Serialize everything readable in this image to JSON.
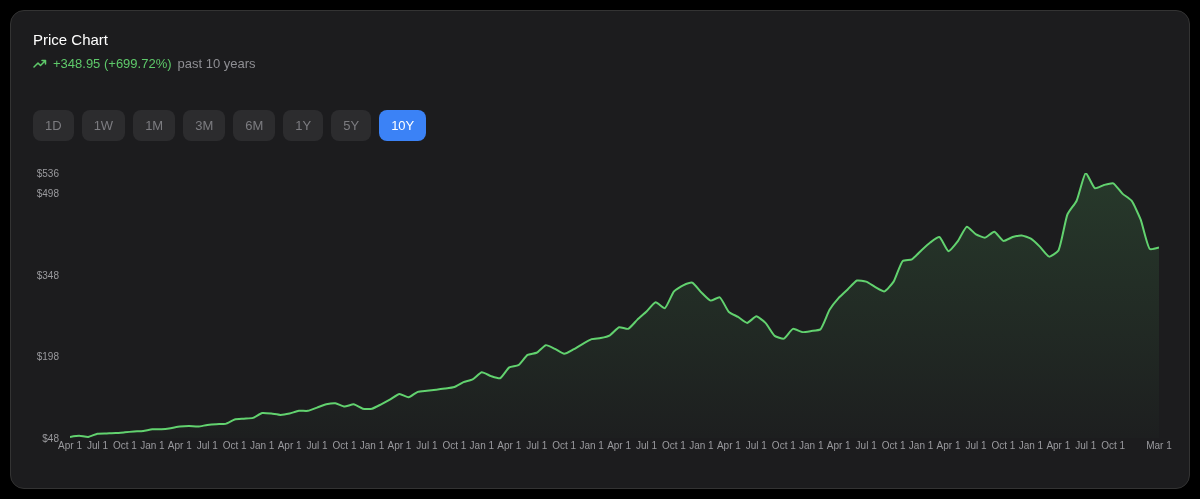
{
  "chart_data": {
    "type": "area",
    "title": "Price Chart",
    "subtitle": "+348.95 (+699.72%)",
    "annotations": [
      "past 10 years",
      "1D",
      "1W",
      "1M",
      "3M",
      "6M",
      "1Y",
      "5Y",
      "10Y"
    ],
    "categories": [
      "Apr 1",
      null,
      null,
      "Jul 1",
      null,
      null,
      "Oct 1",
      null,
      null,
      "Jan 1",
      null,
      null,
      "Apr 1",
      null,
      null,
      "Jul 1",
      null,
      null,
      "Oct 1",
      null,
      null,
      "Jan 1",
      null,
      null,
      "Apr 1",
      null,
      null,
      "Jul 1",
      null,
      null,
      "Oct 1",
      null,
      null,
      "Jan 1",
      null,
      null,
      "Apr 1",
      null,
      null,
      "Jul 1",
      null,
      null,
      "Oct 1",
      null,
      null,
      "Jan 1",
      null,
      null,
      "Apr 1",
      null,
      null,
      "Jul 1",
      null,
      null,
      "Oct 1",
      null,
      null,
      "Jan 1",
      null,
      null,
      "Apr 1",
      null,
      null,
      "Jul 1",
      null,
      null,
      "Oct 1",
      null,
      null,
      "Jan 1",
      null,
      null,
      "Apr 1",
      null,
      null,
      "Jul 1",
      null,
      null,
      "Oct 1",
      null,
      null,
      "Jan 1",
      null,
      null,
      "Apr 1",
      null,
      null,
      "Jul 1",
      null,
      null,
      "Oct 1",
      null,
      null,
      "Jan 1",
      null,
      null,
      "Apr 1",
      null,
      null,
      "Jul 1",
      null,
      null,
      "Oct 1",
      null,
      null,
      "Jan 1",
      null,
      null,
      "Apr 1",
      null,
      null,
      "Jul 1",
      null,
      null,
      "Oct 1",
      null,
      null,
      null,
      null,
      "Mar 1"
    ],
    "series": [
      {
        "color": "#62d26f",
        "values": [
          50,
          52,
          50,
          56,
          56.5,
          57,
          58.5,
          60,
          61,
          64,
          64,
          66,
          69,
          70,
          69,
          72,
          73.5,
          74,
          82,
          83.5,
          85,
          94,
          93,
          90.5,
          93,
          98,
          98,
          104,
          110,
          112,
          106,
          110,
          102,
          102,
          110,
          119,
          129,
          123,
          133,
          135,
          137,
          139,
          142,
          151,
          156,
          169,
          162,
          158,
          178,
          182,
          201,
          205,
          219,
          212,
          203,
          211,
          221,
          230,
          232,
          237,
          252,
          249,
          266,
          281,
          298,
          287,
          318,
          329,
          334,
          316,
          301,
          307,
          280,
          271,
          260,
          272,
          260,
          236,
          231,
          249,
          243,
          245,
          248,
          284,
          306,
          322,
          338,
          336,
          326,
          318,
          336,
          374,
          377,
          393,
          408,
          418,
          392,
          410,
          437,
          423,
          417,
          428,
          411,
          418,
          421,
          415,
          400,
          382,
          393,
          460,
          485,
          536,
          508,
          514,
          517,
          498,
          485,
          450,
          396,
          399
        ]
      }
    ],
    "ylim": [
      48,
      536
    ],
    "yticks": [
      {
        "value": 48,
        "label": "$48"
      },
      {
        "value": 198,
        "label": "$198"
      },
      {
        "value": 348,
        "label": "$348"
      },
      {
        "value": 498,
        "label": "$498"
      },
      {
        "value": 536,
        "label": "$536"
      }
    ]
  }
}
